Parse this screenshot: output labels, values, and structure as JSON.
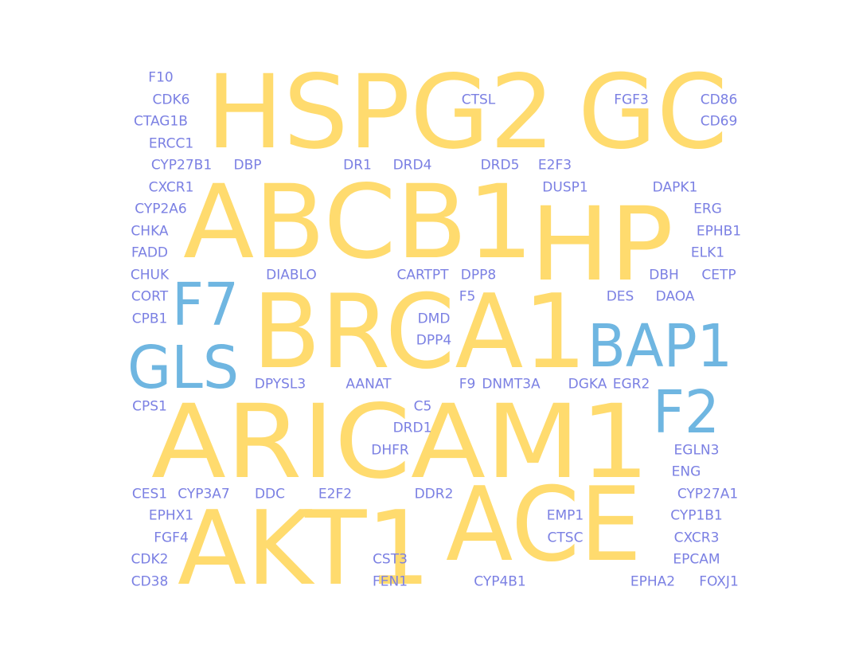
{
  "colors": {
    "large": "#FFDB6E",
    "medium": "#6FB6E1",
    "small": "#7B80E3"
  },
  "chart_data": {
    "type": "wordcloud",
    "words": [
      {
        "text": "HSPG2",
        "weight": 100,
        "tier": "large"
      },
      {
        "text": "GC",
        "weight": 100,
        "tier": "large"
      },
      {
        "text": "ABCB1",
        "weight": 100,
        "tier": "large"
      },
      {
        "text": "HP",
        "weight": 100,
        "tier": "large"
      },
      {
        "text": "BRCA1",
        "weight": 100,
        "tier": "large"
      },
      {
        "text": "ARICAM1",
        "weight": 100,
        "tier": "large"
      },
      {
        "text": "AKT1",
        "weight": 100,
        "tier": "large"
      },
      {
        "text": "ACE",
        "weight": 100,
        "tier": "large"
      },
      {
        "text": "BAP1",
        "weight": 60,
        "tier": "medium"
      },
      {
        "text": "GLS",
        "weight": 60,
        "tier": "medium"
      },
      {
        "text": "F7",
        "weight": 60,
        "tier": "medium"
      },
      {
        "text": "F2",
        "weight": 60,
        "tier": "medium"
      },
      {
        "text": "F10",
        "weight": 10,
        "tier": "small"
      },
      {
        "text": "CDK6",
        "weight": 10,
        "tier": "small"
      },
      {
        "text": "CTAG1B",
        "weight": 10,
        "tier": "small"
      },
      {
        "text": "ERCC1",
        "weight": 10,
        "tier": "small"
      },
      {
        "text": "CYP27B1",
        "weight": 10,
        "tier": "small"
      },
      {
        "text": "DBP",
        "weight": 10,
        "tier": "small"
      },
      {
        "text": "DR1",
        "weight": 10,
        "tier": "small"
      },
      {
        "text": "DRD4",
        "weight": 10,
        "tier": "small"
      },
      {
        "text": "DRD5",
        "weight": 10,
        "tier": "small"
      },
      {
        "text": "E2F3",
        "weight": 10,
        "tier": "small"
      },
      {
        "text": "CTSL",
        "weight": 10,
        "tier": "small"
      },
      {
        "text": "FGF3",
        "weight": 10,
        "tier": "small"
      },
      {
        "text": "CD86",
        "weight": 10,
        "tier": "small"
      },
      {
        "text": "CD69",
        "weight": 10,
        "tier": "small"
      },
      {
        "text": "CXCR1",
        "weight": 10,
        "tier": "small"
      },
      {
        "text": "DUSP1",
        "weight": 10,
        "tier": "small"
      },
      {
        "text": "DAPK1",
        "weight": 10,
        "tier": "small"
      },
      {
        "text": "CYP2A6",
        "weight": 10,
        "tier": "small"
      },
      {
        "text": "ERG",
        "weight": 10,
        "tier": "small"
      },
      {
        "text": "CHKA",
        "weight": 10,
        "tier": "small"
      },
      {
        "text": "EPHB1",
        "weight": 10,
        "tier": "small"
      },
      {
        "text": "FADD",
        "weight": 10,
        "tier": "small"
      },
      {
        "text": "ELK1",
        "weight": 10,
        "tier": "small"
      },
      {
        "text": "CHUK",
        "weight": 10,
        "tier": "small"
      },
      {
        "text": "DIABLO",
        "weight": 10,
        "tier": "small"
      },
      {
        "text": "CARTPT",
        "weight": 10,
        "tier": "small"
      },
      {
        "text": "DPP8",
        "weight": 10,
        "tier": "small"
      },
      {
        "text": "DBH",
        "weight": 10,
        "tier": "small"
      },
      {
        "text": "CETP",
        "weight": 10,
        "tier": "small"
      },
      {
        "text": "CORT",
        "weight": 10,
        "tier": "small"
      },
      {
        "text": "F5",
        "weight": 10,
        "tier": "small"
      },
      {
        "text": "DES",
        "weight": 10,
        "tier": "small"
      },
      {
        "text": "DAOA",
        "weight": 10,
        "tier": "small"
      },
      {
        "text": "CPB1",
        "weight": 10,
        "tier": "small"
      },
      {
        "text": "DMD",
        "weight": 10,
        "tier": "small"
      },
      {
        "text": "DPP4",
        "weight": 10,
        "tier": "small"
      },
      {
        "text": "DPYSL3",
        "weight": 10,
        "tier": "small"
      },
      {
        "text": "AANAT",
        "weight": 10,
        "tier": "small"
      },
      {
        "text": "F9",
        "weight": 10,
        "tier": "small"
      },
      {
        "text": "DNMT3A",
        "weight": 10,
        "tier": "small"
      },
      {
        "text": "DGKA",
        "weight": 10,
        "tier": "small"
      },
      {
        "text": "EGR2",
        "weight": 10,
        "tier": "small"
      },
      {
        "text": "CPS1",
        "weight": 10,
        "tier": "small"
      },
      {
        "text": "C5",
        "weight": 10,
        "tier": "small"
      },
      {
        "text": "DRD1",
        "weight": 10,
        "tier": "small"
      },
      {
        "text": "DHFR",
        "weight": 10,
        "tier": "small"
      },
      {
        "text": "EGLN3",
        "weight": 10,
        "tier": "small"
      },
      {
        "text": "ENG",
        "weight": 10,
        "tier": "small"
      },
      {
        "text": "CES1",
        "weight": 10,
        "tier": "small"
      },
      {
        "text": "CYP3A7",
        "weight": 10,
        "tier": "small"
      },
      {
        "text": "DDC",
        "weight": 10,
        "tier": "small"
      },
      {
        "text": "E2F2",
        "weight": 10,
        "tier": "small"
      },
      {
        "text": "DDR2",
        "weight": 10,
        "tier": "small"
      },
      {
        "text": "CYP27A1",
        "weight": 10,
        "tier": "small"
      },
      {
        "text": "EPHX1",
        "weight": 10,
        "tier": "small"
      },
      {
        "text": "EMP1",
        "weight": 10,
        "tier": "small"
      },
      {
        "text": "CYP1B1",
        "weight": 10,
        "tier": "small"
      },
      {
        "text": "FGF4",
        "weight": 10,
        "tier": "small"
      },
      {
        "text": "CTSC",
        "weight": 10,
        "tier": "small"
      },
      {
        "text": "CXCR3",
        "weight": 10,
        "tier": "small"
      },
      {
        "text": "CDK2",
        "weight": 10,
        "tier": "small"
      },
      {
        "text": "CST3",
        "weight": 10,
        "tier": "small"
      },
      {
        "text": "EPCAM",
        "weight": 10,
        "tier": "small"
      },
      {
        "text": "CD38",
        "weight": 10,
        "tier": "small"
      },
      {
        "text": "FEN1",
        "weight": 10,
        "tier": "small"
      },
      {
        "text": "CYP4B1",
        "weight": 10,
        "tier": "small"
      },
      {
        "text": "EPHA2",
        "weight": 10,
        "tier": "small"
      },
      {
        "text": "FOXJ1",
        "weight": 10,
        "tier": "small"
      }
    ]
  }
}
